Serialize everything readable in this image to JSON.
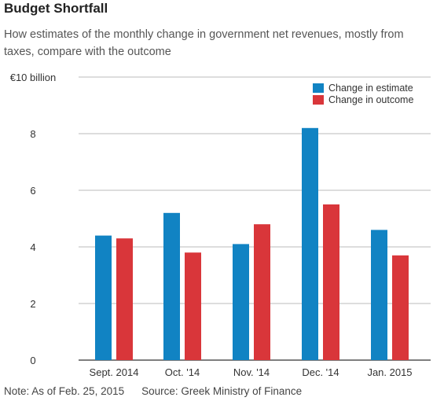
{
  "header": {
    "title": "Budget Shortfall",
    "subtitle": "How estimates of the monthly change in government net revenues, mostly from taxes, compare with the outcome"
  },
  "footer": {
    "note": "Note: As of Feb. 25, 2015",
    "source": "Source: Greek Ministry of Finance"
  },
  "colors": {
    "estimate": "#1183c3",
    "outcome": "#d9363a",
    "gridline": "#bbbbbb",
    "baseline": "#333333"
  },
  "chart_data": {
    "type": "bar",
    "title": "Budget Shortfall",
    "xlabel": "",
    "ylabel": "",
    "ylim": [
      0,
      10
    ],
    "yticks": [
      0,
      2,
      4,
      6,
      8,
      10
    ],
    "ytick_labels": [
      "0",
      "2",
      "4",
      "6",
      "8",
      "€10 billion"
    ],
    "grid": true,
    "legend_position": "top-right",
    "categories": [
      "Sept. 2014",
      "Oct. '14",
      "Nov. '14",
      "Dec. '14",
      "Jan. 2015"
    ],
    "series": [
      {
        "name": "Change in estimate",
        "values": [
          4.4,
          5.2,
          4.1,
          8.2,
          4.6
        ]
      },
      {
        "name": "Change in outcome",
        "values": [
          4.3,
          3.8,
          4.8,
          5.5,
          3.7
        ]
      }
    ]
  }
}
